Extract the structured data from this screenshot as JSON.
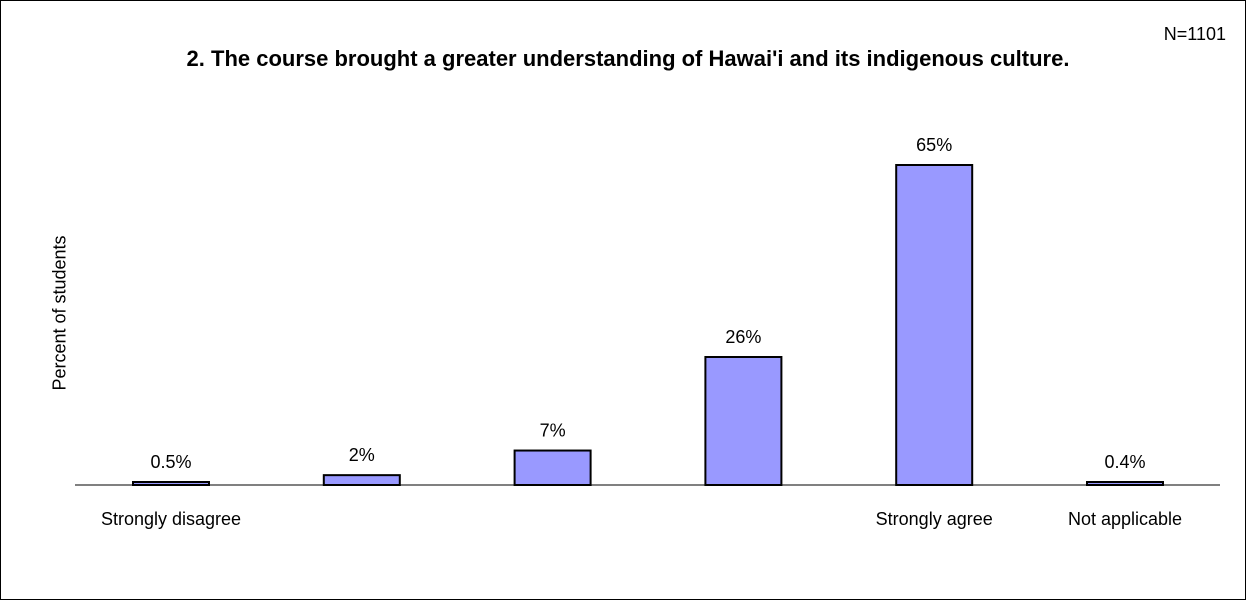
{
  "chart_data": {
    "type": "bar",
    "title": "2. The course brought a greater understanding of Hawai'i and its indigenous culture.",
    "annotation": "N=1101",
    "ylabel": "Percent of students",
    "xlabel": "",
    "categories": [
      "Strongly disagree",
      "",
      "",
      "",
      "Strongly agree",
      "Not applicable"
    ],
    "values": [
      0.5,
      2,
      7,
      26,
      65,
      0.4
    ],
    "data_labels": [
      "0.5%",
      "2%",
      "7%",
      "26%",
      "65%",
      "0.4%"
    ],
    "ylim": [
      0,
      65
    ],
    "grid": false,
    "legend": "none",
    "colors": {
      "bar": "#9999ff",
      "bar_stroke": "#000000",
      "axis": "#000000"
    }
  }
}
